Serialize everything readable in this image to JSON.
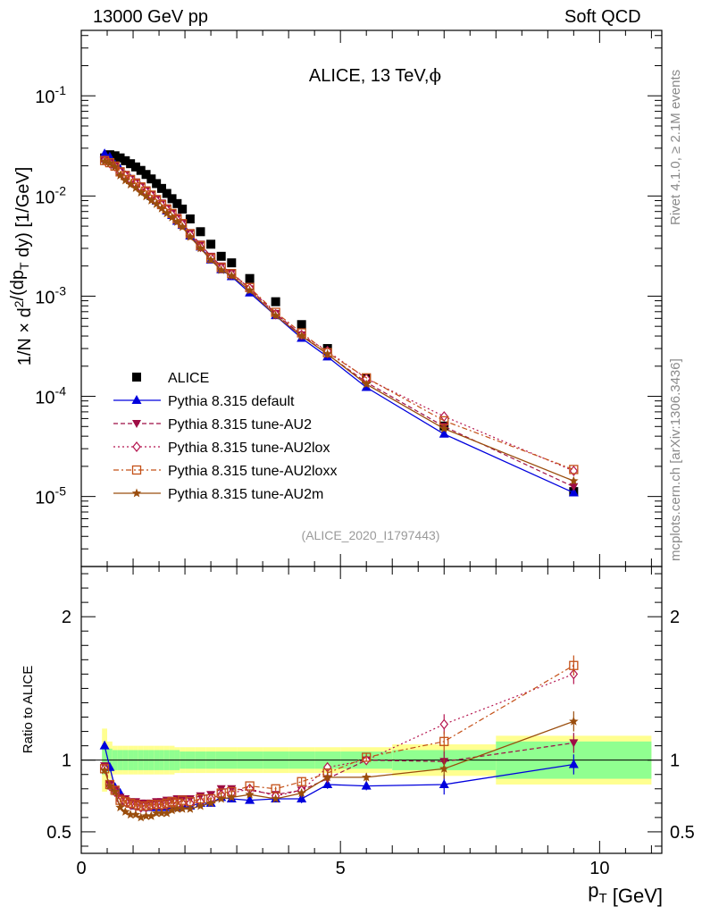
{
  "header": {
    "left": "13000 GeV pp",
    "right": "Soft QCD",
    "plot_title": "ALICE, 13 TeV,",
    "plot_title_symbol": "ϕ",
    "analysis_tag": "(ALICE_2020_I1797443)",
    "side_rivet": "Rivet 4.1.0, ≥ 2.1M events",
    "side_site": "mcplots.cern.ch [arXiv:1306.3436]"
  },
  "colors": {
    "data": "#000000",
    "default": "#0000dd",
    "au2": "#9e0d45",
    "au2lox": "#b5154f",
    "au2loxx": "#c45017",
    "au2m": "#9a4d0d",
    "band_inner": "#90ff90",
    "band_outer": "#ffff90"
  },
  "chart_data": [
    {
      "type": "scatter",
      "yscale": "log",
      "ylabel": "1/N × d²/(dp_T dy) [1/GeV]",
      "xlabel": "p_T [GeV]",
      "xlim": [
        0,
        11.2
      ],
      "ylim": [
        2e-06,
        0.45
      ],
      "y_ticks": [
        "10^{-5}",
        "10^{-4}",
        "10^{-3}",
        "10^{-2}",
        "10^{-1}"
      ],
      "legend_position": "bottom-left",
      "x": [
        0.45,
        0.55,
        0.65,
        0.75,
        0.85,
        0.95,
        1.05,
        1.15,
        1.25,
        1.35,
        1.45,
        1.55,
        1.65,
        1.75,
        1.85,
        1.95,
        2.1,
        2.3,
        2.5,
        2.7,
        2.9,
        3.25,
        3.75,
        4.25,
        4.75,
        5.5,
        7.0,
        9.5
      ],
      "series": [
        {
          "name": "ALICE",
          "key": "data",
          "style": "data",
          "values": [
            0.024,
            0.0258,
            0.0252,
            0.024,
            0.0225,
            0.021,
            0.0195,
            0.018,
            0.0164,
            0.0148,
            0.0133,
            0.0119,
            0.0106,
            0.0094,
            0.0084,
            0.0074,
            0.0059,
            0.0044,
            0.0033,
            0.0025,
            0.00215,
            0.0015,
            0.00088,
            0.00052,
            0.0003,
            0.00015,
            5.05e-05,
            1.12e-05
          ]
        },
        {
          "name": "Pythia 8.315 default",
          "key": "default",
          "style": "solid",
          "values": [
            0.0264,
            0.0245,
            0.0205,
            0.0185,
            0.016,
            0.0148,
            0.0133,
            0.0123,
            0.011,
            0.0099,
            0.0089,
            0.0082,
            0.0071,
            0.0064,
            0.0056,
            0.0051,
            0.004,
            0.0031,
            0.0023,
            0.00184,
            0.00157,
            0.00108,
            0.00064,
            0.00038,
            0.000248,
            0.000123,
            4.2e-05,
            1.09e-05
          ]
        },
        {
          "name": "Pythia 8.315 tune-AU2",
          "key": "au2",
          "style": "dashed",
          "values": [
            0.023,
            0.0215,
            0.02,
            0.0178,
            0.0164,
            0.0149,
            0.0138,
            0.0126,
            0.0115,
            0.0104,
            0.0094,
            0.0085,
            0.0076,
            0.0068,
            0.0061,
            0.0054,
            0.0043,
            0.0033,
            0.0025,
            0.002,
            0.00172,
            0.00118,
            0.00067,
            0.00041,
            0.000262,
            0.000138,
            5e-05,
            1.25e-05
          ]
        },
        {
          "name": "Pythia 8.315 tune-AU2lox",
          "key": "au2lox",
          "style": "dotted",
          "values": [
            0.0226,
            0.0213,
            0.0198,
            0.0172,
            0.0159,
            0.0145,
            0.0132,
            0.0121,
            0.011,
            0.0101,
            0.009,
            0.0081,
            0.0073,
            0.0065,
            0.0058,
            0.0052,
            0.0041,
            0.0031,
            0.0024,
            0.0019,
            0.00165,
            0.0012,
            0.00066,
            0.00041,
            0.000283,
            0.00015,
            6.3e-05,
            1.8e-05
          ]
        },
        {
          "name": "Pythia 8.315 tune-AU2loxx",
          "key": "au2loxx",
          "style": "dashdot",
          "values": [
            0.0226,
            0.0215,
            0.0199,
            0.0174,
            0.016,
            0.0146,
            0.0134,
            0.0123,
            0.0112,
            0.0102,
            0.0092,
            0.0082,
            0.0074,
            0.0067,
            0.0059,
            0.0053,
            0.0042,
            0.0032,
            0.0024,
            0.00193,
            0.00168,
            0.00122,
            0.00069,
            0.00043,
            0.000273,
            0.000153,
            5.7e-05,
            1.86e-05
          ]
        },
        {
          "name": "Pythia 8.315 tune-AU2m",
          "key": "au2m",
          "style": "solid",
          "values": [
            0.0222,
            0.0212,
            0.0196,
            0.016,
            0.0143,
            0.013,
            0.012,
            0.0108,
            0.0099,
            0.009,
            0.0083,
            0.0075,
            0.0067,
            0.0061,
            0.0055,
            0.0049,
            0.0039,
            0.003,
            0.0023,
            0.00182,
            0.0016,
            0.00114,
            0.00064,
            0.0004,
            0.000264,
            0.000132,
            4.75e-05,
            1.43e-05
          ]
        }
      ]
    },
    {
      "type": "line",
      "ylabel": "Ratio to ALICE",
      "xlabel": "p_T [GeV]",
      "xlim": [
        0,
        11.2
      ],
      "ylim": [
        0.35,
        2.35
      ],
      "y_ticks": [
        0.5,
        1,
        2
      ],
      "x_ticks": [
        0,
        5,
        10
      ],
      "reference_line": 1,
      "x": [
        0.45,
        0.55,
        0.65,
        0.75,
        0.85,
        0.95,
        1.05,
        1.15,
        1.25,
        1.35,
        1.45,
        1.55,
        1.65,
        1.75,
        1.85,
        1.95,
        2.1,
        2.3,
        2.5,
        2.7,
        2.9,
        3.25,
        3.75,
        4.25,
        4.75,
        5.5,
        7.0,
        9.5
      ],
      "band_edges": [
        0.4,
        0.5,
        0.6,
        0.7,
        0.8,
        0.9,
        1.0,
        1.1,
        1.2,
        1.3,
        1.4,
        1.5,
        1.6,
        1.7,
        1.8,
        1.9,
        2.0,
        2.2,
        2.4,
        2.6,
        2.8,
        3.0,
        3.5,
        4.0,
        4.5,
        5.0,
        6.0,
        8.0,
        11.0
      ],
      "band_inner": [
        0.1,
        0.08,
        0.07,
        0.07,
        0.07,
        0.07,
        0.07,
        0.07,
        0.07,
        0.07,
        0.07,
        0.07,
        0.07,
        0.07,
        0.07,
        0.06,
        0.06,
        0.06,
        0.06,
        0.06,
        0.06,
        0.06,
        0.06,
        0.06,
        0.06,
        0.06,
        0.07,
        0.13
      ],
      "band_outer": [
        0.22,
        0.13,
        0.1,
        0.1,
        0.1,
        0.1,
        0.1,
        0.1,
        0.1,
        0.1,
        0.1,
        0.1,
        0.1,
        0.1,
        0.09,
        0.09,
        0.09,
        0.09,
        0.09,
        0.09,
        0.09,
        0.09,
        0.09,
        0.09,
        0.09,
        0.09,
        0.11,
        0.17
      ],
      "series": [
        {
          "name": "Pythia 8.315 default",
          "key": "default",
          "values": [
            1.1,
            0.95,
            0.81,
            0.77,
            0.71,
            0.7,
            0.68,
            0.68,
            0.67,
            0.67,
            0.67,
            0.69,
            0.67,
            0.68,
            0.67,
            0.69,
            0.68,
            0.7,
            0.7,
            0.74,
            0.73,
            0.72,
            0.73,
            0.73,
            0.83,
            0.82,
            0.83,
            0.97
          ]
        },
        {
          "name": "Pythia 8.315 tune-AU2",
          "key": "au2",
          "values": [
            0.96,
            0.83,
            0.79,
            0.74,
            0.73,
            0.71,
            0.71,
            0.7,
            0.7,
            0.7,
            0.71,
            0.71,
            0.72,
            0.72,
            0.73,
            0.73,
            0.73,
            0.75,
            0.76,
            0.8,
            0.8,
            0.79,
            0.76,
            0.79,
            0.87,
            1.0,
            0.99,
            1.12
          ]
        },
        {
          "name": "Pythia 8.315 tune-AU2lox",
          "key": "au2lox",
          "values": [
            0.94,
            0.82,
            0.78,
            0.72,
            0.71,
            0.69,
            0.68,
            0.67,
            0.67,
            0.68,
            0.68,
            0.68,
            0.69,
            0.69,
            0.69,
            0.7,
            0.7,
            0.71,
            0.73,
            0.76,
            0.77,
            0.8,
            0.75,
            0.79,
            0.95,
            1.0,
            1.25,
            1.6
          ]
        },
        {
          "name": "Pythia 8.315 tune-AU2loxx",
          "key": "au2loxx",
          "values": [
            0.94,
            0.83,
            0.79,
            0.72,
            0.71,
            0.7,
            0.69,
            0.68,
            0.68,
            0.69,
            0.69,
            0.69,
            0.7,
            0.71,
            0.7,
            0.72,
            0.71,
            0.73,
            0.73,
            0.77,
            0.78,
            0.82,
            0.8,
            0.85,
            0.91,
            1.02,
            1.13,
            1.66
          ]
        },
        {
          "name": "Pythia 8.315 tune-AU2m",
          "key": "au2m",
          "values": [
            0.93,
            0.82,
            0.78,
            0.67,
            0.64,
            0.62,
            0.62,
            0.6,
            0.61,
            0.61,
            0.63,
            0.63,
            0.63,
            0.65,
            0.66,
            0.66,
            0.66,
            0.68,
            0.7,
            0.73,
            0.74,
            0.76,
            0.73,
            0.77,
            0.88,
            0.88,
            0.94,
            1.27
          ]
        }
      ]
    }
  ]
}
